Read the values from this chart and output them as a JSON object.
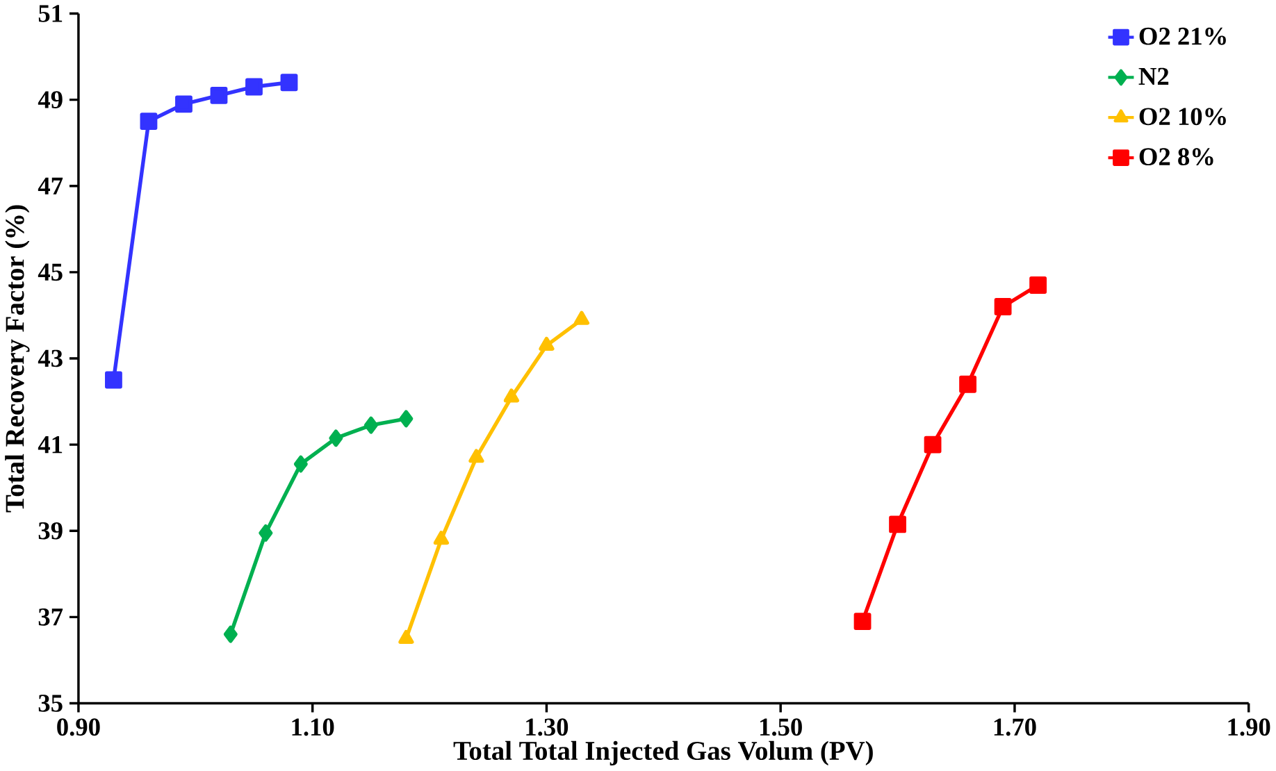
{
  "chart_data": {
    "type": "line",
    "xlabel": "Total Total Injected Gas Volum (PV)",
    "ylabel": "Total Recovery Factor (%)",
    "series": [
      {
        "name": "O2 21%",
        "color": "#3333ff",
        "marker": "square",
        "x": [
          0.93,
          0.96,
          0.99,
          1.02,
          1.05,
          1.08
        ],
        "values": [
          42.5,
          48.5,
          48.9,
          49.1,
          49.3,
          49.4
        ]
      },
      {
        "name": "N2",
        "color": "#00b050",
        "marker": "diamond",
        "x": [
          1.03,
          1.06,
          1.09,
          1.12,
          1.15,
          1.18
        ],
        "values": [
          36.6,
          38.95,
          40.55,
          41.15,
          41.45,
          41.6
        ]
      },
      {
        "name": "O2 10%",
        "color": "#ffc000",
        "marker": "triangle",
        "x": [
          1.18,
          1.21,
          1.24,
          1.27,
          1.3,
          1.33
        ],
        "values": [
          36.5,
          38.8,
          40.7,
          42.1,
          43.3,
          43.9
        ]
      },
      {
        "name": "O2 8%",
        "color": "#ff0000",
        "marker": "square",
        "x": [
          1.57,
          1.6,
          1.63,
          1.66,
          1.69,
          1.72
        ],
        "values": [
          36.9,
          39.15,
          41.0,
          42.4,
          44.2,
          44.7
        ]
      }
    ],
    "xlim": [
      0.9,
      1.9
    ],
    "xticks": [
      {
        "value": 0.9,
        "label": "0.90"
      },
      {
        "value": 1.1,
        "label": "1.10"
      },
      {
        "value": 1.3,
        "label": "1.30"
      },
      {
        "value": 1.5,
        "label": "1.50"
      },
      {
        "value": 1.7,
        "label": "1.70"
      },
      {
        "value": 1.9,
        "label": "1.90"
      }
    ],
    "ylim": [
      35,
      51
    ],
    "yticks": [
      35,
      37,
      39,
      41,
      43,
      45,
      47,
      49,
      51
    ],
    "grid": false,
    "legend": "top right",
    "line_style": "solid"
  }
}
